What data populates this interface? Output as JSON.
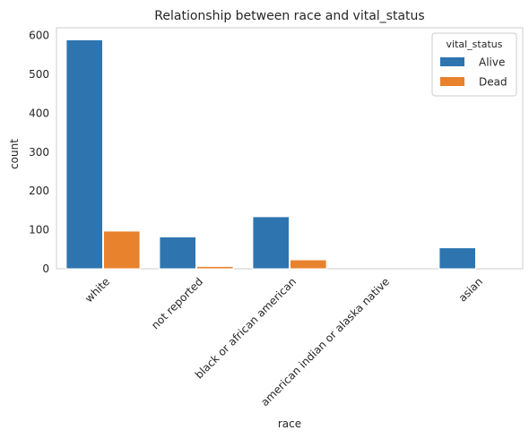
{
  "chart_data": {
    "type": "bar",
    "title": "Relationship between race and vital_status",
    "xlabel": "race",
    "ylabel": "count",
    "categories": [
      "white",
      "not reported",
      "black or african american",
      "american indian or alaska native",
      "asian"
    ],
    "series": [
      {
        "name": "Alive",
        "values": [
          589,
          82,
          134,
          0,
          54
        ],
        "color": "#2e75b0"
      },
      {
        "name": "Dead",
        "values": [
          97,
          6,
          23,
          0,
          0
        ],
        "color": "#e8822c"
      }
    ],
    "ylim": [
      0,
      620
    ],
    "yticks": [
      0,
      100,
      200,
      300,
      400,
      500,
      600
    ],
    "legend": {
      "title": "vital_status",
      "placement": "top-right"
    },
    "grid": false
  }
}
